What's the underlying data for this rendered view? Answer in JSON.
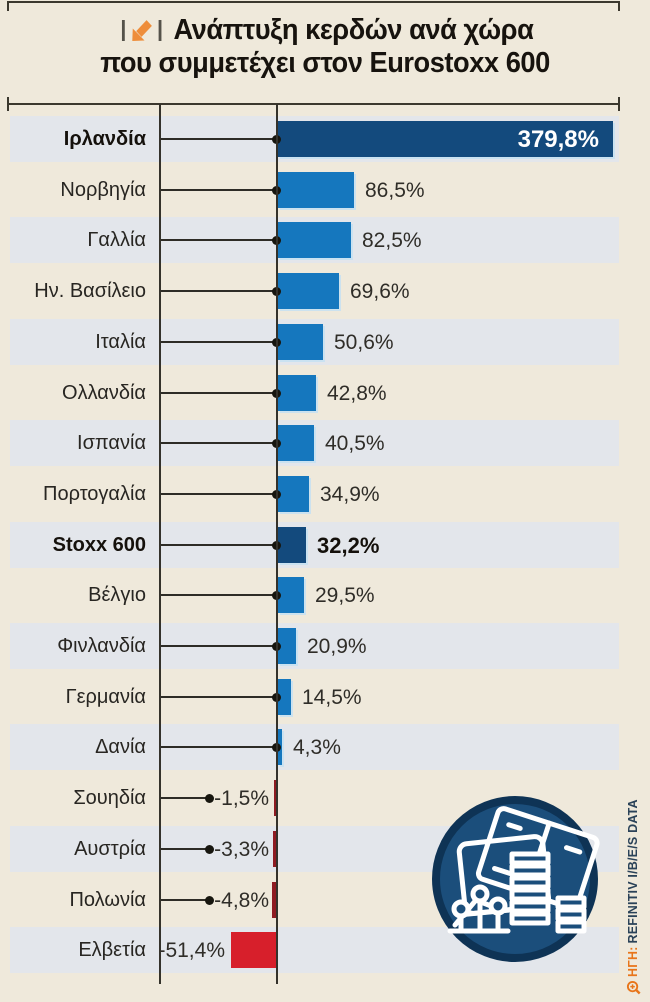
{
  "title": {
    "line1": "Ανάπτυξη κερδών ανά χώρα",
    "line2": "που συμμετέχει στον Eurostoxx 600",
    "bullet_icon": "down-left-arrow-icon"
  },
  "chart_data": {
    "type": "bar",
    "orientation": "horizontal",
    "title": "Ανάπτυξη κερδών ανά χώρα που συμμετέχει στον Eurostoxx 600",
    "xlabel": "",
    "ylabel": "",
    "value_unit": "%",
    "xlim": [
      -60,
      390
    ],
    "grid": false,
    "legend": "none",
    "categories": [
      "Ιρλανδία",
      "Νορβηγία",
      "Γαλλία",
      "Ην. Βασίλειο",
      "Ιταλία",
      "Ολλανδία",
      "Ισπανία",
      "Πορτογαλία",
      "Stoxx 600",
      "Βέλγιο",
      "Φινλανδία",
      "Γερμανία",
      "Δανία",
      "Σουηδία",
      "Αυστρία",
      "Πολωνία",
      "Ελβετία"
    ],
    "values": [
      379.8,
      86.5,
      82.5,
      69.6,
      50.6,
      42.8,
      40.5,
      34.9,
      32.2,
      29.5,
      20.9,
      14.5,
      4.3,
      -1.5,
      -3.3,
      -4.8,
      -51.4
    ],
    "rows": [
      {
        "label": "Ιρλανδία",
        "value": 379.8,
        "display": "379,8%",
        "style": "navy",
        "emphasis": true,
        "value_inside": true
      },
      {
        "label": "Νορβηγία",
        "value": 86.5,
        "display": "86,5%",
        "style": "blue"
      },
      {
        "label": "Γαλλία",
        "value": 82.5,
        "display": "82,5%",
        "style": "blue"
      },
      {
        "label": "Ην. Βασίλειο",
        "value": 69.6,
        "display": "69,6%",
        "style": "blue"
      },
      {
        "label": "Ιταλία",
        "value": 50.6,
        "display": "50,6%",
        "style": "blue"
      },
      {
        "label": "Ολλανδία",
        "value": 42.8,
        "display": "42,8%",
        "style": "blue"
      },
      {
        "label": "Ισπανία",
        "value": 40.5,
        "display": "40,5%",
        "style": "blue"
      },
      {
        "label": "Πορτογαλία",
        "value": 34.9,
        "display": "34,9%",
        "style": "blue"
      },
      {
        "label": "Stoxx 600",
        "value": 32.2,
        "display": "32,2%",
        "style": "navy",
        "emphasis": true
      },
      {
        "label": "Βέλγιο",
        "value": 29.5,
        "display": "29,5%",
        "style": "blue"
      },
      {
        "label": "Φινλανδία",
        "value": 20.9,
        "display": "20,9%",
        "style": "blue"
      },
      {
        "label": "Γερμανία",
        "value": 14.5,
        "display": "14,5%",
        "style": "blue"
      },
      {
        "label": "Δανία",
        "value": 4.3,
        "display": "4,3%",
        "style": "blue"
      },
      {
        "label": "Σουηδία",
        "value": -1.5,
        "display": "-1,5%",
        "style": "dark-red"
      },
      {
        "label": "Αυστρία",
        "value": -3.3,
        "display": "-3,3%",
        "style": "dark-red"
      },
      {
        "label": "Πολωνία",
        "value": -4.8,
        "display": "-4,8%",
        "style": "dark-red"
      },
      {
        "label": "Ελβετία",
        "value": -51.4,
        "display": "-51,4%",
        "style": "red"
      }
    ]
  },
  "source": {
    "icon": "magnifier-plus-icon",
    "prefix": "ΗΓΗ:",
    "text": "REFINITIV I/B/E/S DATA"
  },
  "logo": {
    "name": "analytics-badge",
    "description": "navy circle with white line-art of documents, block columns and dot chart"
  },
  "colors": {
    "background": "#EFE9DB",
    "band": "#E3E6EB",
    "blue": "#1577BE",
    "navy": "#134A7D",
    "red": "#D71F2B",
    "dark_red": "#8E1B22",
    "line": "#34322B",
    "text": "#282622",
    "orange": "#EE8D3A"
  }
}
